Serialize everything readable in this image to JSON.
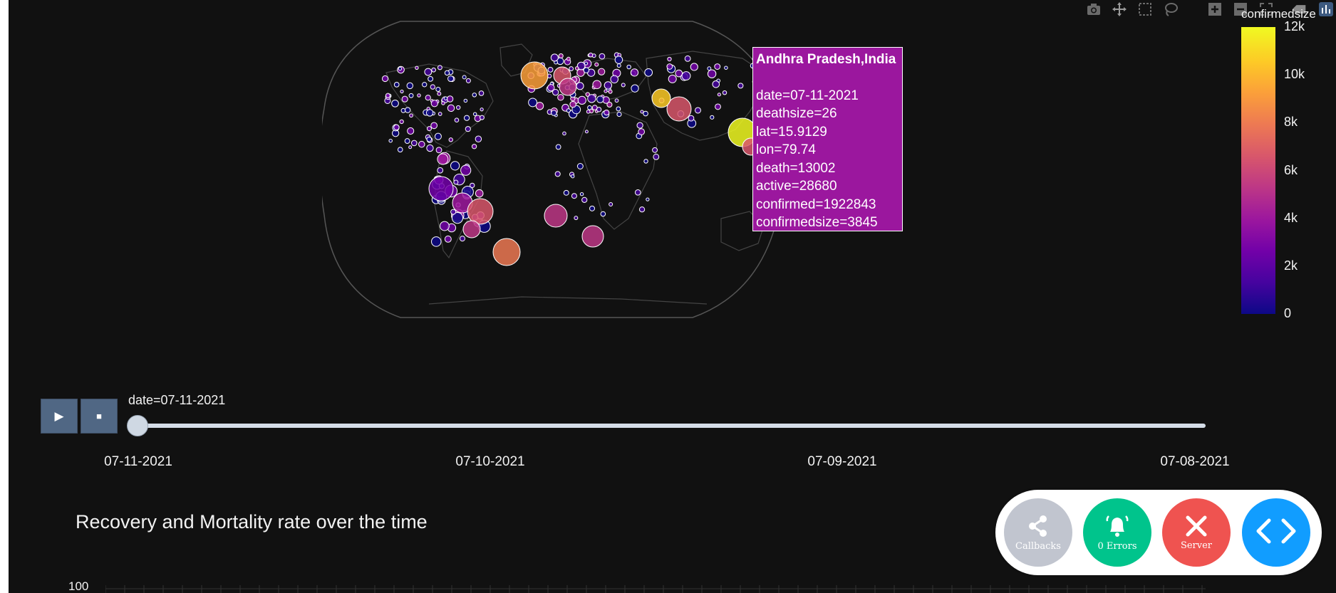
{
  "modebar": {
    "icons": [
      "camera-icon",
      "pan-icon",
      "box-select-icon",
      "lasso-icon",
      "zoom-in-icon",
      "zoom-out-icon",
      "autoscale-icon",
      "reset-icon",
      "plotly-logo-icon"
    ]
  },
  "map": {
    "projection": "natural-earth",
    "land_color": "#111111",
    "coast_color": "#444444",
    "marker_colorscale": "plasma",
    "colorbar": {
      "title": "confirmedsize",
      "ticks": [
        "12k",
        "10k",
        "8k",
        "6k",
        "4k",
        "2k",
        "0"
      ]
    }
  },
  "tooltip": {
    "title": "Andhra Pradesh,India",
    "lines": [
      "date=07-11-2021",
      "deathsize=26",
      "lat=15.9129",
      "lon=79.74",
      "death=13002",
      "active=28680",
      "confirmed=1922843",
      "confirmedsize=3845"
    ],
    "bg_color": "#9b179e"
  },
  "slider": {
    "play_icon": "play-icon",
    "stop_icon": "stop-icon",
    "current_value": "date=07-11-2021",
    "labels": [
      "07-11-2021",
      "07-10-2021",
      "07-09-2021",
      "07-08-2021"
    ],
    "progress": 0
  },
  "chart2": {
    "title": "Recovery and Mortality rate over the time",
    "ytick_top": "100"
  },
  "debug_menu": {
    "callbacks": {
      "label": "Callbacks",
      "icon": "share-icon",
      "color": "#c1c5cf"
    },
    "errors": {
      "label": "0 Errors",
      "icon": "bell-icon",
      "color": "#00c48c"
    },
    "server": {
      "label": "Server",
      "icon": "close-icon",
      "color": "#ef5350"
    },
    "code": {
      "icon": "code-icon",
      "color": "#119dff"
    }
  }
}
